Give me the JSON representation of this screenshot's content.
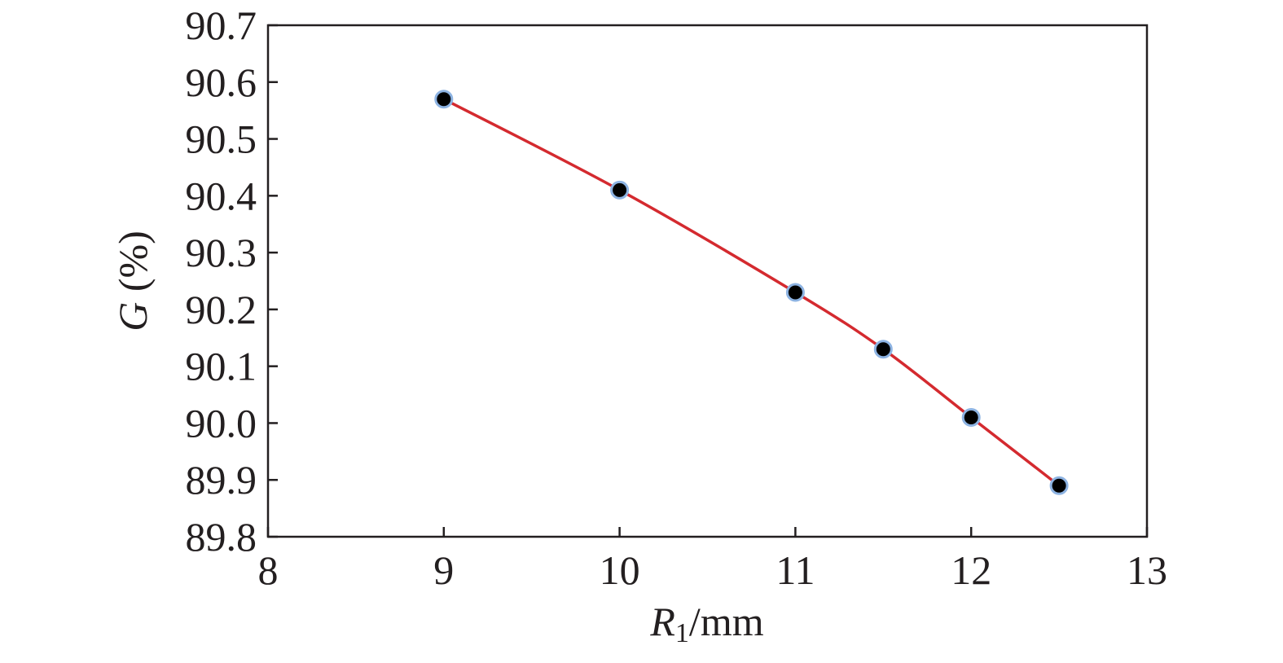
{
  "chart_data": {
    "type": "line",
    "title": "",
    "xlabel": {
      "symbol": "R",
      "subscript": "1",
      "unit": "/mm"
    },
    "ylabel": {
      "symbol": "G",
      "unit": " (%)"
    },
    "xlim": [
      8,
      13
    ],
    "ylim": [
      89.8,
      90.7
    ],
    "x_ticks": [
      "8",
      "9",
      "10",
      "11",
      "12",
      "13"
    ],
    "y_ticks": [
      "89.8",
      "89.9",
      "90.0",
      "90.1",
      "90.2",
      "90.3",
      "90.4",
      "90.5",
      "90.6",
      "90.7"
    ],
    "grid": false,
    "series": [
      {
        "x": [
          9,
          10,
          11,
          11.5,
          12,
          12.5
        ],
        "y": [
          90.57,
          90.41,
          90.23,
          90.13,
          90.01,
          89.89
        ],
        "line_color": "#d42a2f",
        "marker_color": "#000000",
        "marker_edge_color": "#8db3e2"
      }
    ]
  }
}
